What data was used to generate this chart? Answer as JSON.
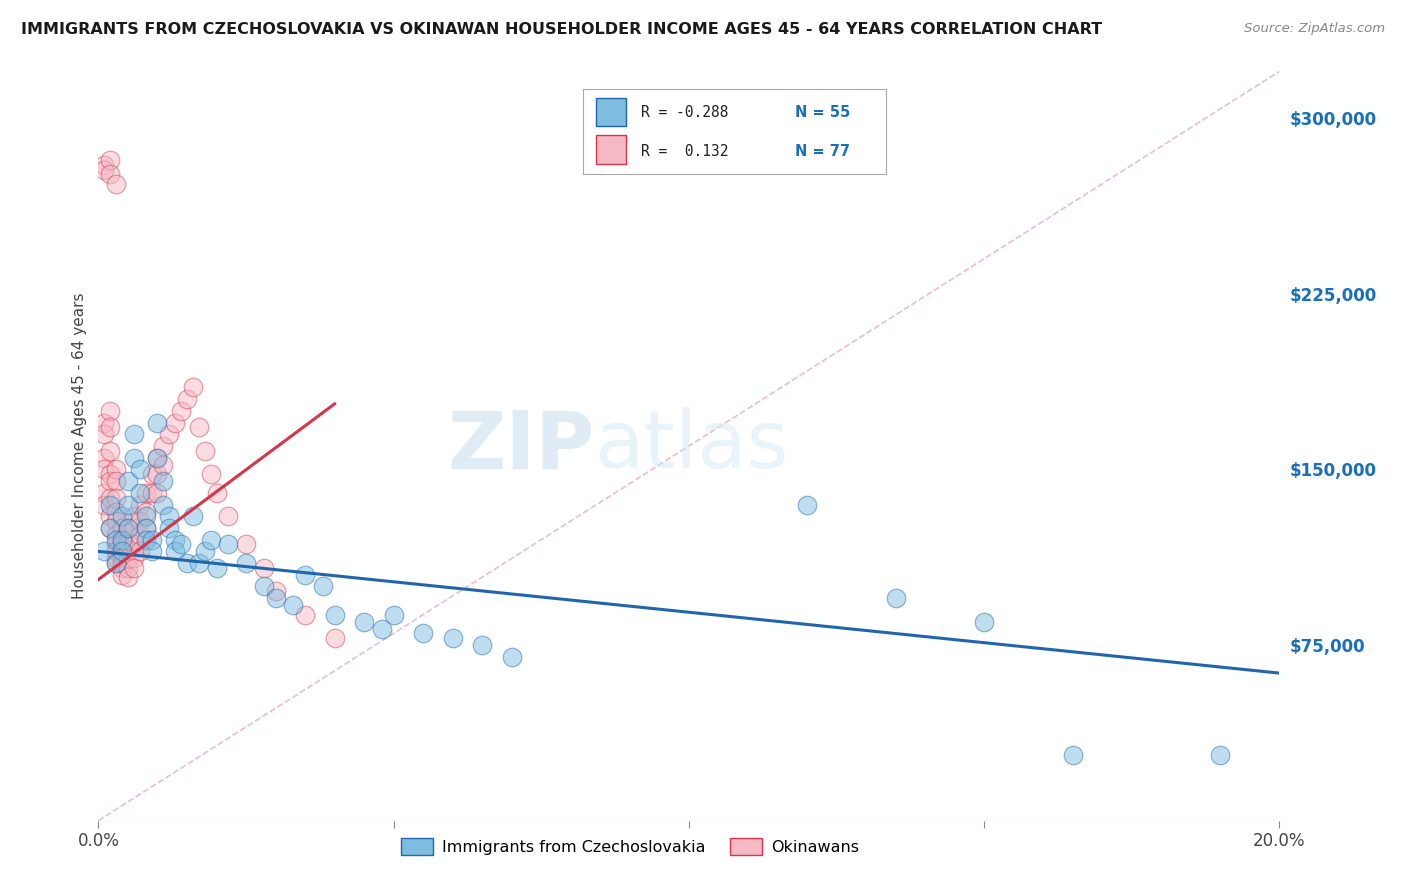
{
  "title": "IMMIGRANTS FROM CZECHOSLOVAKIA VS OKINAWAN HOUSEHOLDER INCOME AGES 45 - 64 YEARS CORRELATION CHART",
  "source": "Source: ZipAtlas.com",
  "ylabel": "Householder Income Ages 45 - 64 years",
  "xlim": [
    0.0,
    0.2
  ],
  "ylim": [
    0,
    320000
  ],
  "xticks": [
    0.0,
    0.05,
    0.1,
    0.15,
    0.2
  ],
  "xticklabels": [
    "0.0%",
    "",
    "",
    "",
    "20.0%"
  ],
  "yticks_right": [
    75000,
    150000,
    225000,
    300000
  ],
  "yticklabels_right": [
    "$75,000",
    "$150,000",
    "$225,000",
    "$300,000"
  ],
  "blue_color": "#7fbde0",
  "pink_color": "#f5b8c4",
  "trend_blue_color": "#2166ac",
  "trend_pink_color": "#d6354a",
  "watermark_zip": "ZIP",
  "watermark_atlas": "atlas",
  "grid_color": "#cccccc",
  "blue_scatter_x": [
    0.001,
    0.002,
    0.002,
    0.003,
    0.003,
    0.004,
    0.004,
    0.004,
    0.005,
    0.005,
    0.005,
    0.006,
    0.006,
    0.007,
    0.007,
    0.008,
    0.008,
    0.008,
    0.009,
    0.009,
    0.01,
    0.01,
    0.011,
    0.011,
    0.012,
    0.012,
    0.013,
    0.013,
    0.014,
    0.015,
    0.016,
    0.017,
    0.018,
    0.019,
    0.02,
    0.022,
    0.025,
    0.028,
    0.03,
    0.033,
    0.035,
    0.038,
    0.04,
    0.045,
    0.048,
    0.05,
    0.055,
    0.06,
    0.065,
    0.07,
    0.12,
    0.135,
    0.15,
    0.165,
    0.19
  ],
  "blue_scatter_y": [
    115000,
    125000,
    135000,
    110000,
    120000,
    120000,
    115000,
    130000,
    145000,
    135000,
    125000,
    155000,
    165000,
    140000,
    150000,
    130000,
    125000,
    120000,
    120000,
    115000,
    170000,
    155000,
    145000,
    135000,
    130000,
    125000,
    120000,
    115000,
    118000,
    110000,
    130000,
    110000,
    115000,
    120000,
    108000,
    118000,
    110000,
    100000,
    95000,
    92000,
    105000,
    100000,
    88000,
    85000,
    82000,
    88000,
    80000,
    78000,
    75000,
    70000,
    135000,
    95000,
    85000,
    28000,
    28000
  ],
  "pink_scatter_x": [
    0.001,
    0.001,
    0.002,
    0.002,
    0.001,
    0.001,
    0.002,
    0.002,
    0.001,
    0.001,
    0.002,
    0.002,
    0.003,
    0.003,
    0.002,
    0.002,
    0.003,
    0.003,
    0.003,
    0.003,
    0.003,
    0.003,
    0.004,
    0.004,
    0.003,
    0.003,
    0.004,
    0.004,
    0.004,
    0.004,
    0.005,
    0.005,
    0.004,
    0.005,
    0.005,
    0.005,
    0.005,
    0.005,
    0.006,
    0.006,
    0.006,
    0.006,
    0.006,
    0.007,
    0.007,
    0.007,
    0.007,
    0.008,
    0.008,
    0.008,
    0.009,
    0.009,
    0.01,
    0.01,
    0.01,
    0.011,
    0.011,
    0.012,
    0.013,
    0.014,
    0.015,
    0.016,
    0.017,
    0.018,
    0.019,
    0.02,
    0.022,
    0.025,
    0.028,
    0.03,
    0.035,
    0.04,
    0.001,
    0.001,
    0.002,
    0.002,
    0.003
  ],
  "pink_scatter_y": [
    170000,
    165000,
    175000,
    168000,
    155000,
    150000,
    158000,
    148000,
    140000,
    135000,
    145000,
    138000,
    150000,
    145000,
    130000,
    125000,
    138000,
    132000,
    128000,
    122000,
    118000,
    112000,
    125000,
    120000,
    115000,
    110000,
    118000,
    112000,
    108000,
    105000,
    120000,
    115000,
    110000,
    125000,
    118000,
    112000,
    108000,
    104000,
    130000,
    125000,
    118000,
    112000,
    108000,
    135000,
    128000,
    122000,
    115000,
    140000,
    132000,
    125000,
    148000,
    140000,
    155000,
    148000,
    140000,
    160000,
    152000,
    165000,
    170000,
    175000,
    180000,
    185000,
    168000,
    158000,
    148000,
    140000,
    130000,
    118000,
    108000,
    98000,
    88000,
    78000,
    280000,
    278000,
    282000,
    276000,
    272000
  ],
  "blue_trend_x": [
    0.0,
    0.2
  ],
  "blue_trend_y": [
    115000,
    63000
  ],
  "pink_trend_x": [
    0.0,
    0.04
  ],
  "pink_trend_y": [
    103000,
    178000
  ],
  "diag_line_x": [
    0.0,
    0.2
  ],
  "diag_line_y": [
    0,
    320000
  ]
}
